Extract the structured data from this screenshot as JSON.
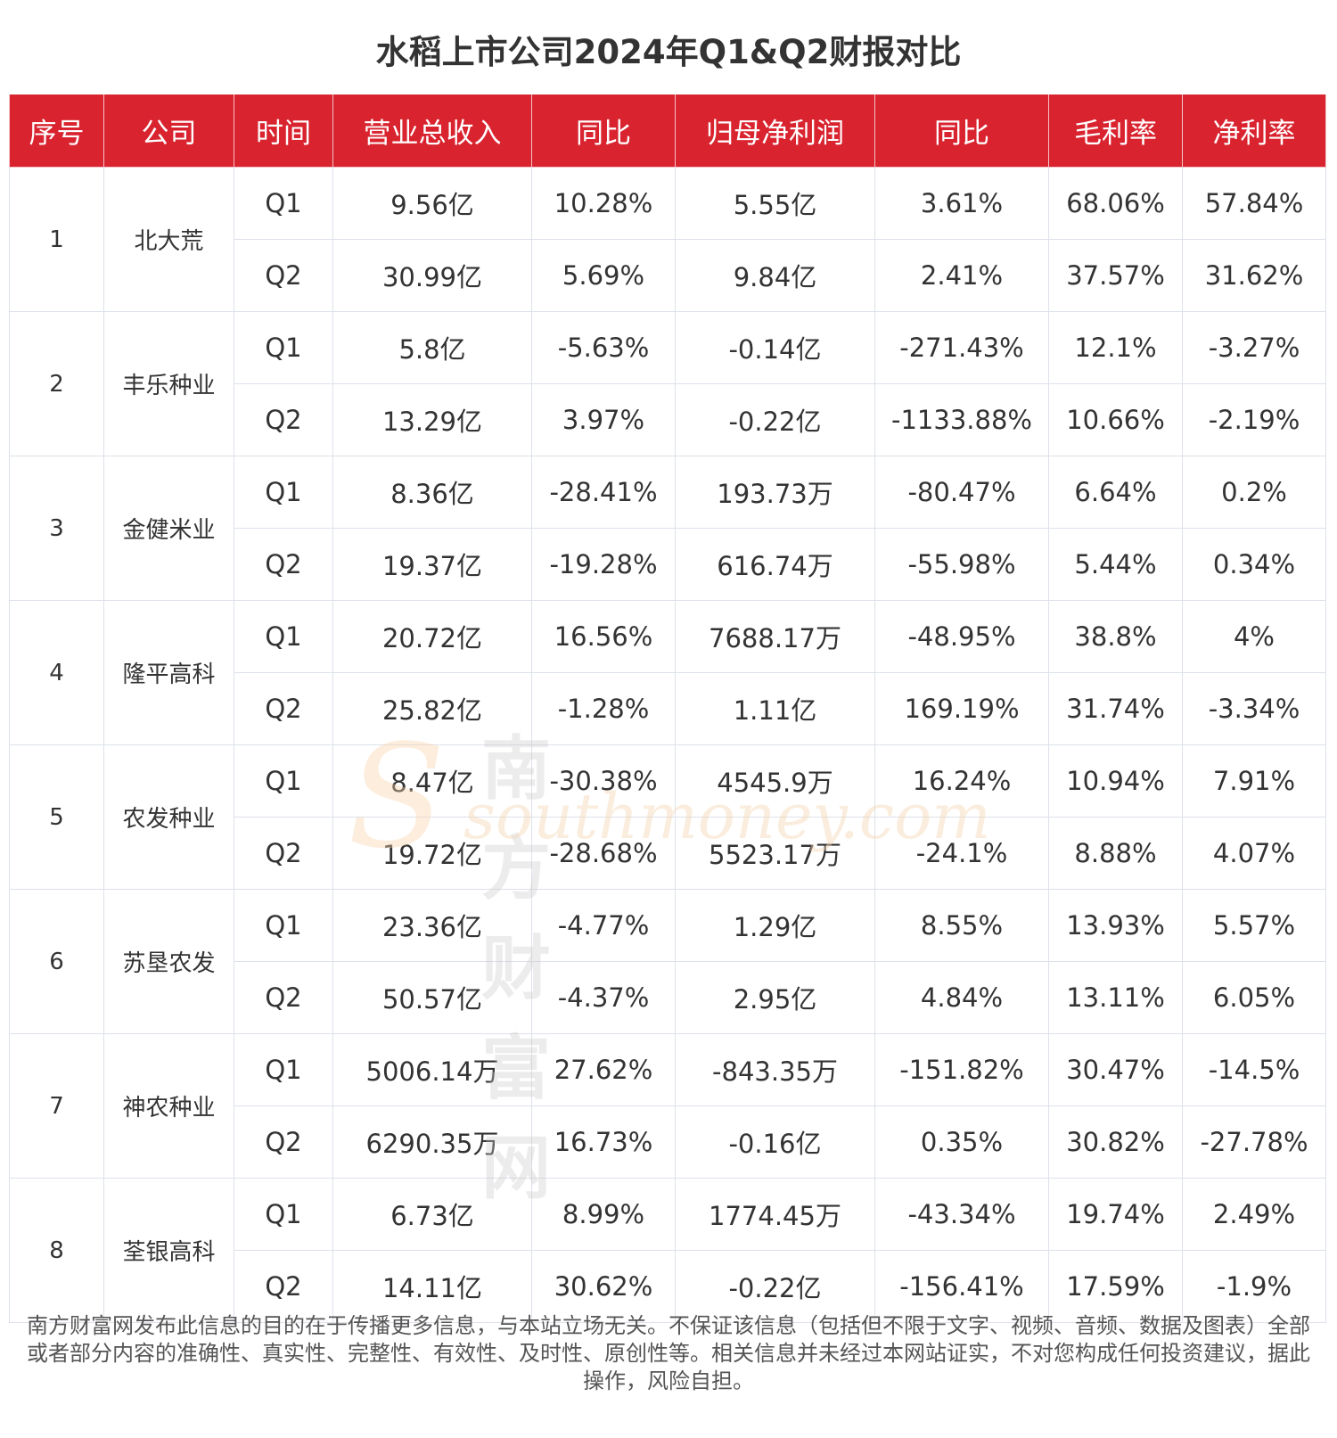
{
  "title": "水稻上市公司2024年Q1&Q2财报对比",
  "headers": [
    "序号",
    "公司",
    "时间",
    "营业总收入",
    "同比",
    "归母净利润",
    "同比",
    "毛利率",
    "净利率"
  ],
  "companies": [
    {
      "index": "1",
      "name": "北大荒",
      "rows": [
        [
          "Q1",
          "9.56亿",
          "10.28%",
          "5.55亿",
          "3.61%",
          "68.06%",
          "57.84%"
        ],
        [
          "Q2",
          "30.99亿",
          "5.69%",
          "9.84亿",
          "2.41%",
          "37.57%",
          "31.62%"
        ]
      ]
    },
    {
      "index": "2",
      "name": "丰乐种业",
      "rows": [
        [
          "Q1",
          "5.8亿",
          "-5.63%",
          "-0.14亿",
          "-271.43%",
          "12.1%",
          "-3.27%"
        ],
        [
          "Q2",
          "13.29亿",
          "3.97%",
          "-0.22亿",
          "-1133.88%",
          "10.66%",
          "-2.19%"
        ]
      ]
    },
    {
      "index": "3",
      "name": "金健米业",
      "rows": [
        [
          "Q1",
          "8.36亿",
          "-28.41%",
          "193.73万",
          "-80.47%",
          "6.64%",
          "0.2%"
        ],
        [
          "Q2",
          "19.37亿",
          "-19.28%",
          "616.74万",
          "-55.98%",
          "5.44%",
          "0.34%"
        ]
      ]
    },
    {
      "index": "4",
      "name": "隆平高科",
      "rows": [
        [
          "Q1",
          "20.72亿",
          "16.56%",
          "7688.17万",
          "-48.95%",
          "38.8%",
          "4%"
        ],
        [
          "Q2",
          "25.82亿",
          "-1.28%",
          "1.11亿",
          "169.19%",
          "31.74%",
          "-3.34%"
        ]
      ]
    },
    {
      "index": "5",
      "name": "农发种业",
      "rows": [
        [
          "Q1",
          "8.47亿",
          "-30.38%",
          "4545.9万",
          "16.24%",
          "10.94%",
          "7.91%"
        ],
        [
          "Q2",
          "19.72亿",
          "-28.68%",
          "5523.17万",
          "-24.1%",
          "8.88%",
          "4.07%"
        ]
      ]
    },
    {
      "index": "6",
      "name": "苏垦农发",
      "rows": [
        [
          "Q1",
          "23.36亿",
          "-4.77%",
          "1.29亿",
          "8.55%",
          "13.93%",
          "5.57%"
        ],
        [
          "Q2",
          "50.57亿",
          "-4.37%",
          "2.95亿",
          "4.84%",
          "13.11%",
          "6.05%"
        ]
      ]
    },
    {
      "index": "7",
      "name": "神农种业",
      "rows": [
        [
          "Q1",
          "5006.14万",
          "27.62%",
          "-843.35万",
          "-151.82%",
          "30.47%",
          "-14.5%"
        ],
        [
          "Q2",
          "6290.35万",
          "16.73%",
          "-0.16亿",
          "0.35%",
          "30.82%",
          "-27.78%"
        ]
      ]
    },
    {
      "index": "8",
      "name": "荃银高科",
      "rows": [
        [
          "Q1",
          "6.73亿",
          "8.99%",
          "1774.45万",
          "-43.34%",
          "19.74%",
          "2.49%"
        ],
        [
          "Q2",
          "14.11亿",
          "30.62%",
          "-0.22亿",
          "-156.41%",
          "17.59%",
          "-1.9%"
        ]
      ]
    }
  ],
  "watermark": {
    "cn": "南方财富网",
    "en": "southmoney.com"
  },
  "footer": "南方财富网发布此信息的目的在于传播更多信息，与本站立场无关。不保证该信息（包括但不限于文字、视频、音频、数据及图表）全部或者部分内容的准确性、真实性、完整性、有效性、及时性、原创性等。相关信息并未经过本网站证实，不对您构成任何投资建议，据此操作，风险自担。",
  "colors": {
    "header_bg": "#d9232f",
    "header_text": "#ffffff",
    "border": "#dde1ea"
  }
}
